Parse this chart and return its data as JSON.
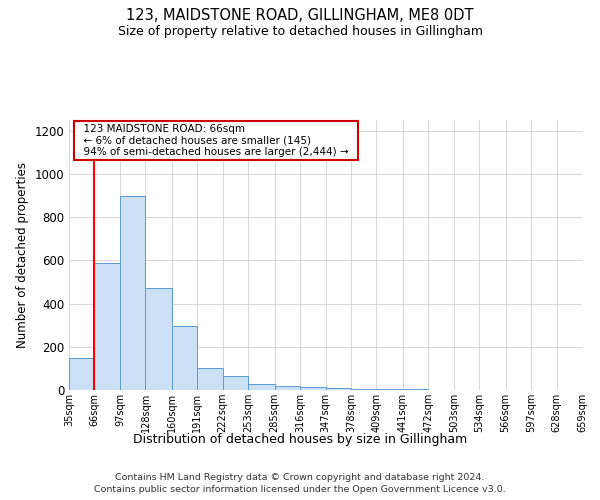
{
  "title": "123, MAIDSTONE ROAD, GILLINGHAM, ME8 0DT",
  "subtitle": "Size of property relative to detached houses in Gillingham",
  "xlabel": "Distribution of detached houses by size in Gillingham",
  "ylabel": "Number of detached properties",
  "footer_line1": "Contains HM Land Registry data © Crown copyright and database right 2024.",
  "footer_line2": "Contains public sector information licensed under the Open Government Licence v3.0.",
  "bar_edges": [
    35,
    66,
    97,
    128,
    160,
    191,
    222,
    253,
    285,
    316,
    347,
    378,
    409,
    441,
    472,
    503,
    534,
    566,
    597,
    628,
    659
  ],
  "bar_heights": [
    150,
    590,
    900,
    470,
    295,
    100,
    65,
    30,
    20,
    12,
    8,
    5,
    4,
    3,
    2,
    1.5,
    1,
    1,
    0.5,
    0.5
  ],
  "bar_color": "#cce0f5",
  "bar_edge_color": "#5b9bd5",
  "red_line_x": 66,
  "annotation_text": "  123 MAIDSTONE ROAD: 66sqm  \n  ← 6% of detached houses are smaller (145)  \n  94% of semi-detached houses are larger (2,444) →  ",
  "annotation_box_color": "#ffffff",
  "annotation_border_color": "#cc0000",
  "ylim": [
    0,
    1250
  ],
  "yticks": [
    0,
    200,
    400,
    600,
    800,
    1000,
    1200
  ],
  "tick_labels": [
    "35sqm",
    "66sqm",
    "97sqm",
    "128sqm",
    "160sqm",
    "191sqm",
    "222sqm",
    "253sqm",
    "285sqm",
    "316sqm",
    "347sqm",
    "378sqm",
    "409sqm",
    "441sqm",
    "472sqm",
    "503sqm",
    "534sqm",
    "566sqm",
    "597sqm",
    "628sqm",
    "659sqm"
  ],
  "background_color": "#ffffff",
  "grid_color": "#d0d0d0"
}
